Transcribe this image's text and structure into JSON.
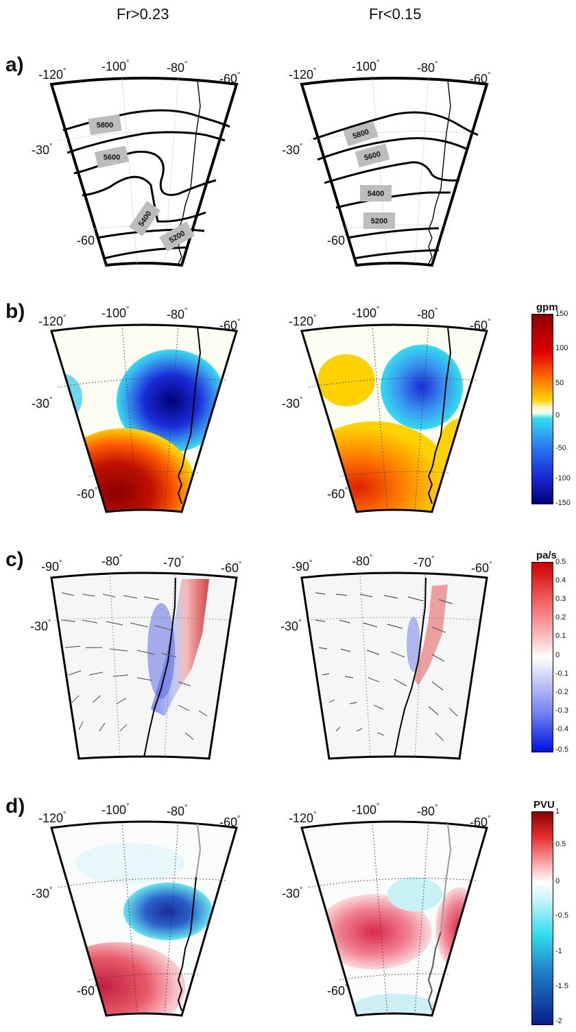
{
  "columns": [
    "Fr>0.23",
    "Fr<0.15"
  ],
  "rows": [
    "a)",
    "b)",
    "c)",
    "d)"
  ],
  "row_a": {
    "lon_ticks": [
      "-120",
      "-100",
      "-80",
      "-60"
    ],
    "lat_ticks": [
      "-30",
      "-60"
    ],
    "degree": "°",
    "left_contours": [
      "5800",
      "5600",
      "5400",
      "5200"
    ],
    "right_contours": [
      "5800",
      "5600",
      "5400",
      "5200"
    ]
  },
  "row_b": {
    "lon_ticks": [
      "-120",
      "-100",
      "-80",
      "-60"
    ],
    "lat_ticks": [
      "-30",
      "-60"
    ],
    "colorbar": {
      "title": "gpm",
      "ticks": [
        "150",
        "100",
        "50",
        "0",
        "-50",
        "-100",
        "-150"
      ]
    }
  },
  "row_c": {
    "lon_ticks": [
      "-90",
      "-80",
      "-70",
      "-60"
    ],
    "lat_ticks": [
      "-30"
    ],
    "colorbar": {
      "title": "pa/s",
      "ticks": [
        "0.5",
        "0.4",
        "0.3",
        "0.2",
        "0.1",
        "0",
        "-0.1",
        "-0.2",
        "-0.3",
        "-0.4",
        "-0.5"
      ]
    }
  },
  "row_d": {
    "lon_ticks": [
      "-120",
      "-100",
      "-80",
      "-60"
    ],
    "lat_ticks": [
      "-30",
      "-60"
    ],
    "colorbar": {
      "title": "PVU",
      "ticks": [
        "1",
        "0.5",
        "0",
        "-0.5",
        "-1",
        "-1.5",
        "-2"
      ]
    }
  },
  "colors": {
    "dark_red": "#8b0000",
    "red": "#ff2a00",
    "yellow": "#ffd200",
    "cyan": "#33ddee",
    "blue": "#1a2cd8",
    "dark_blue": "#000077",
    "contour_label_bg": "#bdbdbd"
  }
}
